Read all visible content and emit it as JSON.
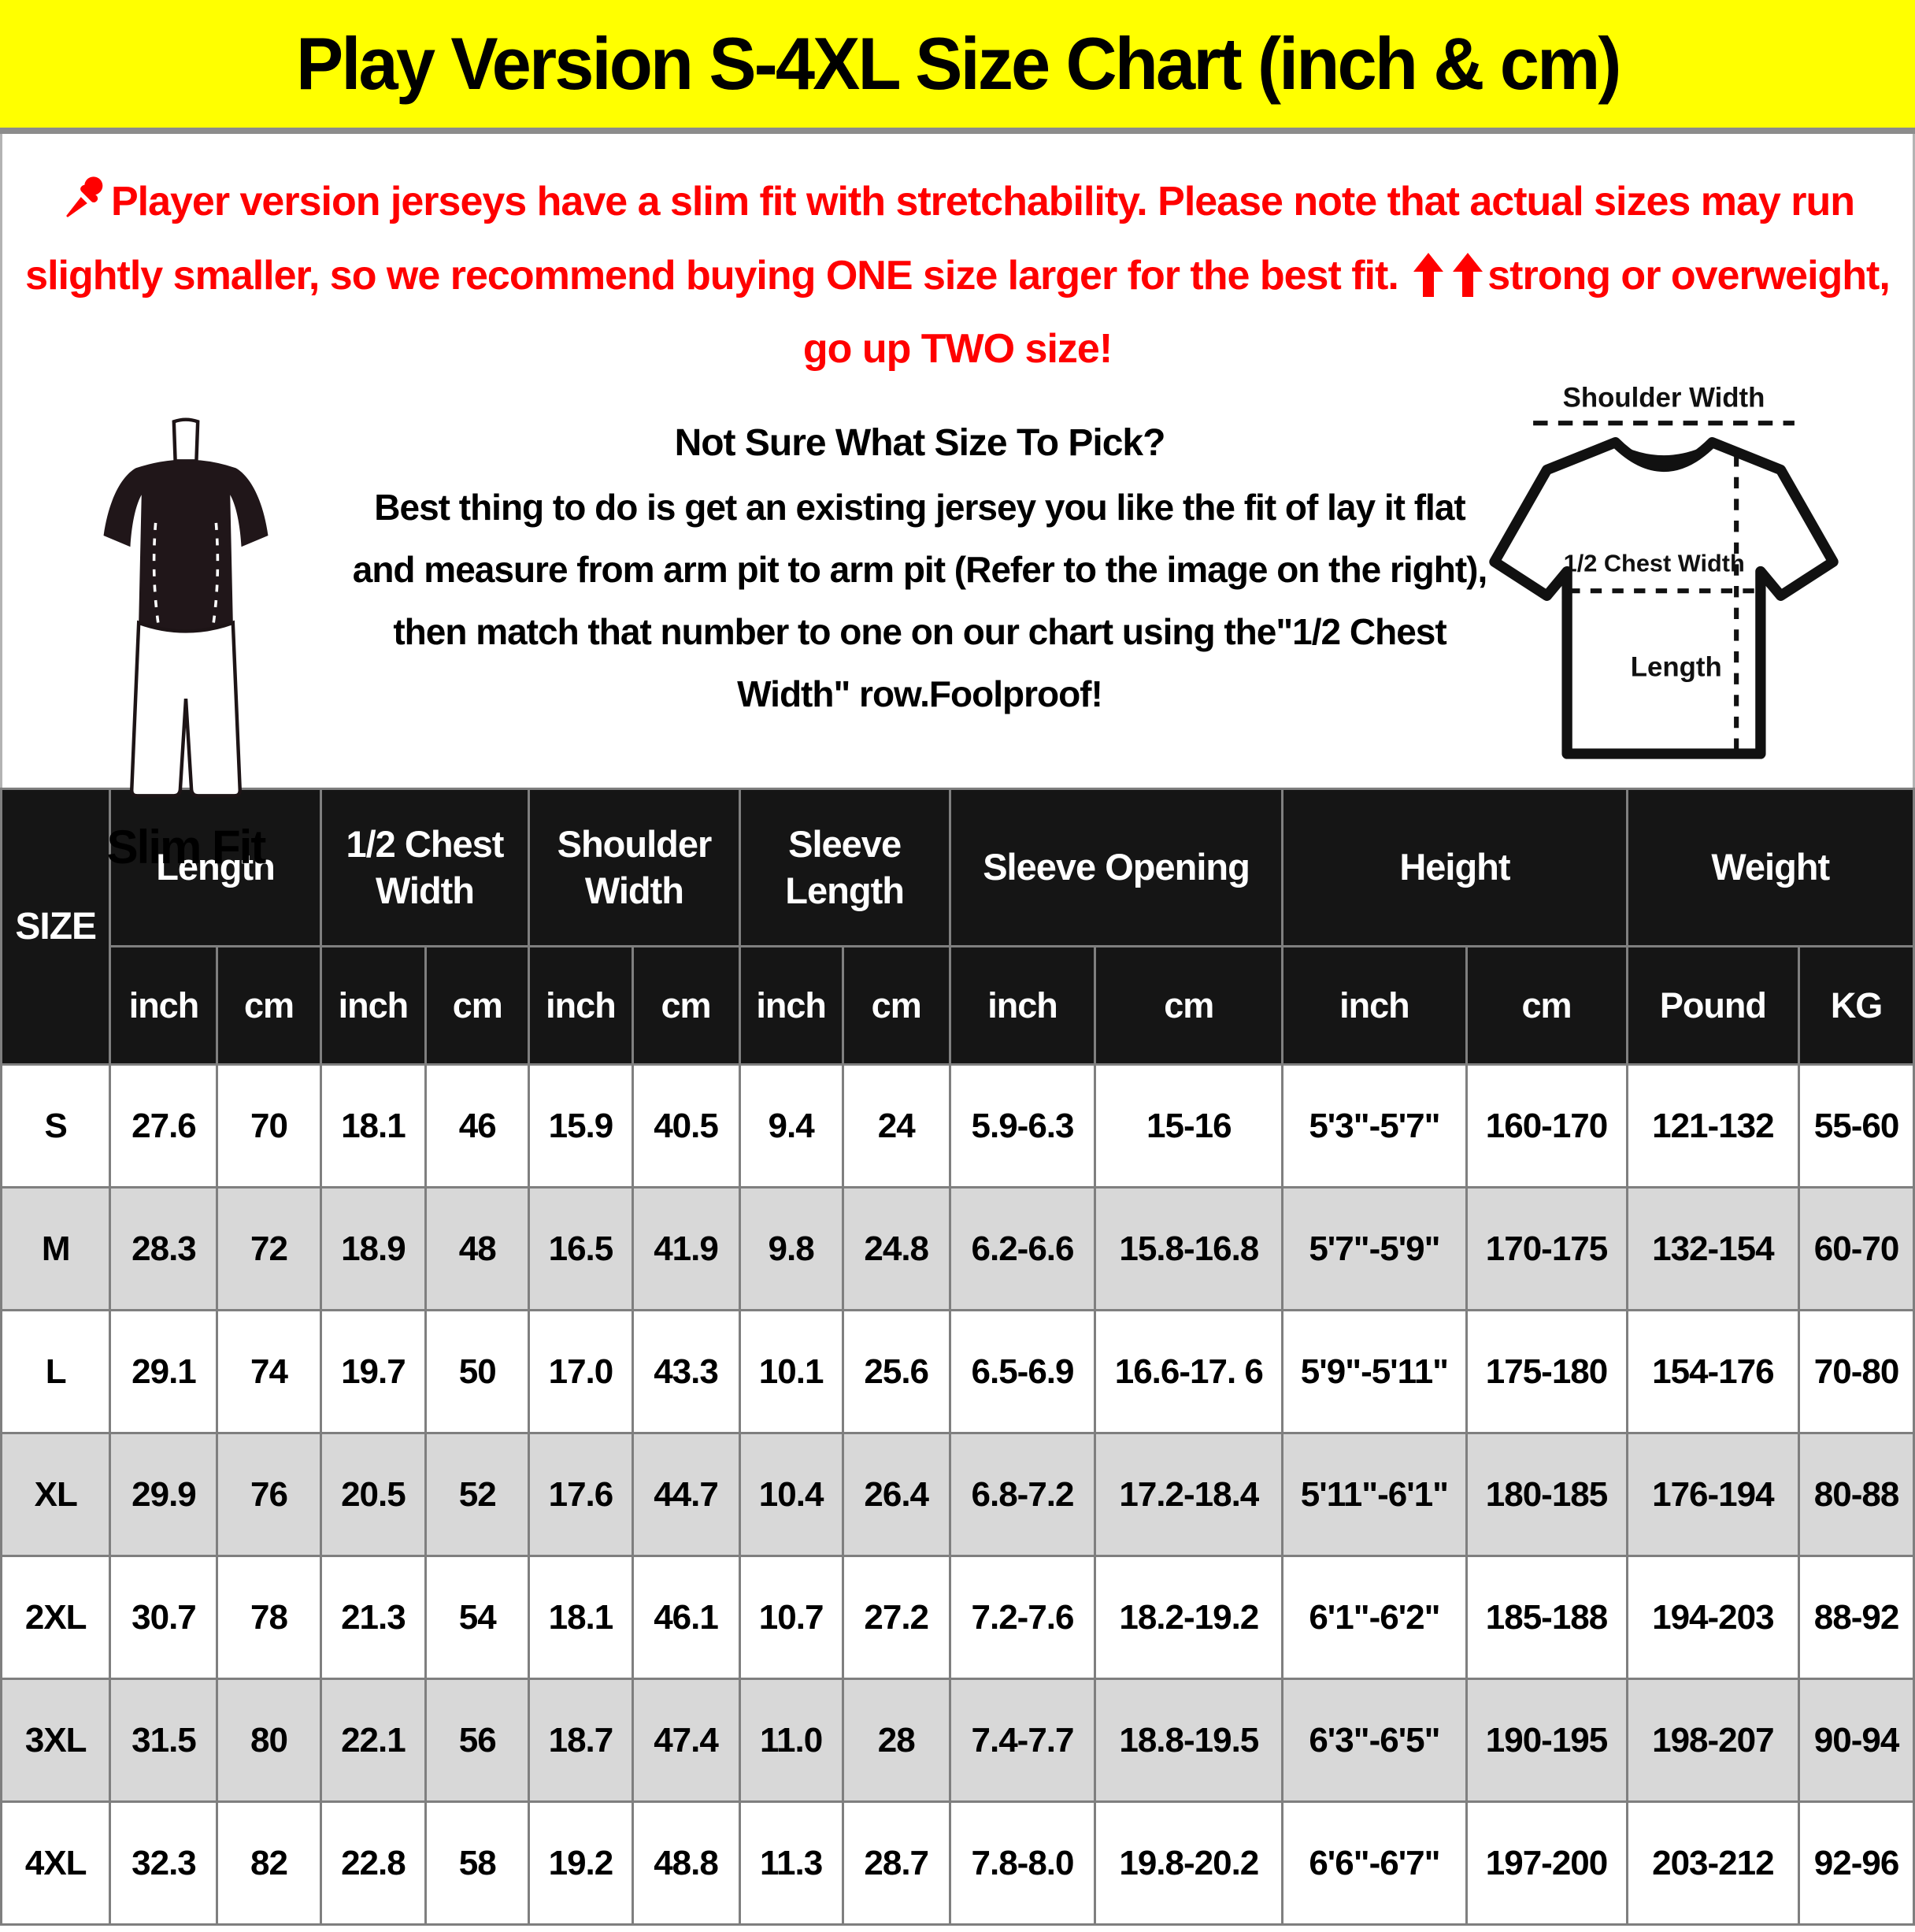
{
  "banner": {
    "title": "Play Version S-4XL Size Chart (inch & cm)",
    "bg_color": "#ffff00"
  },
  "notice": {
    "color": "#ff0000",
    "part1": "Player version jerseys have a slim fit with stretchability. Please note that actual sizes may run slightly smaller, so we recommend buying ONE size larger for the best fit.",
    "part2": "strong or overweight, go up TWO size!"
  },
  "fit_figure": {
    "label": "Slim Fit"
  },
  "guide": {
    "heading": "Not Sure What Size To Pick?",
    "body": "Best thing to do is get an existing jersey you like the fit of lay it flat and measure from arm pit to arm pit (Refer to the image on the right), then match that number to one on our chart using the\"1/2 Chest Width\" row.Foolproof!"
  },
  "diagram": {
    "shoulder_width_label": "Shoulder Width",
    "chest_width_label": "1/2 Chest Width",
    "length_label": "Length"
  },
  "chart_data": {
    "type": "table",
    "title": "Play Version S-4XL Size Chart (inch & cm)",
    "size_header": "SIZE",
    "groups": [
      {
        "label": "Length",
        "sub": [
          "inch",
          "cm"
        ]
      },
      {
        "label": "1/2 Chest Width",
        "sub": [
          "inch",
          "cm"
        ]
      },
      {
        "label": "Shoulder Width",
        "sub": [
          "inch",
          "cm"
        ]
      },
      {
        "label": "Sleeve Length",
        "sub": [
          "inch",
          "cm"
        ]
      },
      {
        "label": "Sleeve Opening",
        "sub": [
          "inch",
          "cm"
        ]
      },
      {
        "label": "Height",
        "sub": [
          "inch",
          "cm"
        ]
      },
      {
        "label": "Weight",
        "sub": [
          "Pound",
          "KG"
        ]
      }
    ],
    "rows": [
      {
        "size": "S",
        "values": [
          "27.6",
          "70",
          "18.1",
          "46",
          "15.9",
          "40.5",
          "9.4",
          "24",
          "5.9-6.3",
          "15-16",
          "5'3\"-5'7\"",
          "160-170",
          "121-132",
          "55-60"
        ]
      },
      {
        "size": "M",
        "values": [
          "28.3",
          "72",
          "18.9",
          "48",
          "16.5",
          "41.9",
          "9.8",
          "24.8",
          "6.2-6.6",
          "15.8-16.8",
          "5'7\"-5'9\"",
          "170-175",
          "132-154",
          "60-70"
        ]
      },
      {
        "size": "L",
        "values": [
          "29.1",
          "74",
          "19.7",
          "50",
          "17.0",
          "43.3",
          "10.1",
          "25.6",
          "6.5-6.9",
          "16.6-17. 6",
          "5'9\"-5'11\"",
          "175-180",
          "154-176",
          "70-80"
        ]
      },
      {
        "size": "XL",
        "values": [
          "29.9",
          "76",
          "20.5",
          "52",
          "17.6",
          "44.7",
          "10.4",
          "26.4",
          "6.8-7.2",
          "17.2-18.4",
          "5'11\"-6'1\"",
          "180-185",
          "176-194",
          "80-88"
        ]
      },
      {
        "size": "2XL",
        "values": [
          "30.7",
          "78",
          "21.3",
          "54",
          "18.1",
          "46.1",
          "10.7",
          "27.2",
          "7.2-7.6",
          "18.2-19.2",
          "6'1\"-6'2\"",
          "185-188",
          "194-203",
          "88-92"
        ]
      },
      {
        "size": "3XL",
        "values": [
          "31.5",
          "80",
          "22.1",
          "56",
          "18.7",
          "47.4",
          "11.0",
          "28",
          "7.4-7.7",
          "18.8-19.5",
          "6'3\"-6'5\"",
          "190-195",
          "198-207",
          "90-94"
        ]
      },
      {
        "size": "4XL",
        "values": [
          "32.3",
          "82",
          "22.8",
          "58",
          "19.2",
          "48.8",
          "11.3",
          "28.7",
          "7.8-8.0",
          "19.8-20.2",
          "6'6\"-6'7\"",
          "197-200",
          "203-212",
          "92-96"
        ]
      }
    ]
  }
}
